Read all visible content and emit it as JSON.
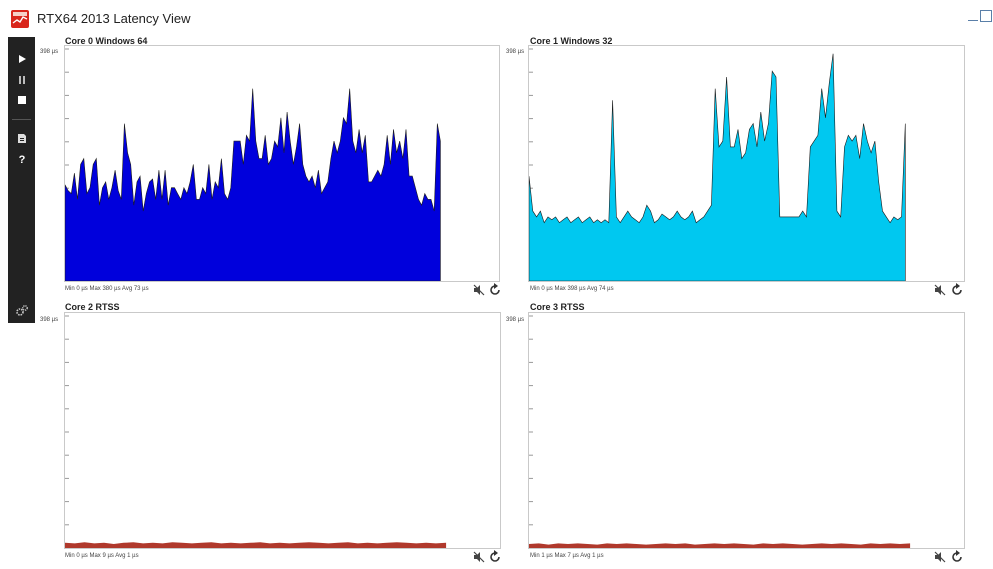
{
  "window": {
    "title": "RTX64 2013 Latency View"
  },
  "toolbar": {
    "items": [
      {
        "name": "play-icon"
      },
      {
        "name": "pause-icon"
      },
      {
        "name": "stop-icon"
      },
      {
        "name": "save-report-icon"
      },
      {
        "name": "help-icon"
      },
      {
        "name": "settings-gears-icon"
      }
    ]
  },
  "colors": {
    "core0": "#0000dc",
    "core1": "#00c8f0",
    "rtss": "#b0392c"
  },
  "panels": [
    {
      "title": "Core 0 Windows 64",
      "ymax_label": "398 µs",
      "stats": "Min 0 µs Max 380 µs Avg 73 µs",
      "chart_data": {
        "type": "area",
        "ylim": [
          0,
          398
        ],
        "values": [
          165,
          155,
          150,
          185,
          140,
          200,
          210,
          150,
          160,
          200,
          210,
          130,
          160,
          170,
          140,
          160,
          190,
          155,
          140,
          270,
          220,
          200,
          130,
          170,
          180,
          120,
          150,
          170,
          175,
          140,
          190,
          140,
          190,
          130,
          160,
          160,
          150,
          140,
          160,
          150,
          170,
          200,
          140,
          140,
          160,
          150,
          200,
          140,
          170,
          160,
          210,
          150,
          140,
          160,
          240,
          240,
          240,
          200,
          250,
          240,
          330,
          240,
          210,
          210,
          250,
          200,
          210,
          240,
          230,
          280,
          220,
          290,
          240,
          200,
          230,
          270,
          200,
          180,
          170,
          180,
          160,
          190,
          150,
          160,
          170,
          210,
          240,
          220,
          240,
          280,
          270,
          330,
          240,
          220,
          260,
          220,
          250,
          170,
          170,
          180,
          190,
          180,
          200,
          250,
          200,
          260,
          220,
          240,
          210,
          260,
          180,
          180,
          160,
          140,
          130,
          150,
          140,
          140,
          120,
          270,
          240
        ]
      }
    },
    {
      "title": "Core 1 Windows 32",
      "ymax_label": "398 µs",
      "stats": "Min 0 µs Max 398 µs Avg 74 µs",
      "chart_data": {
        "type": "area",
        "ylim": [
          0,
          398
        ],
        "values": [
          180,
          120,
          110,
          120,
          100,
          110,
          105,
          110,
          100,
          105,
          110,
          100,
          105,
          110,
          100,
          105,
          110,
          100,
          105,
          100,
          105,
          100,
          310,
          110,
          100,
          110,
          120,
          110,
          105,
          100,
          110,
          130,
          120,
          100,
          105,
          115,
          110,
          105,
          110,
          120,
          110,
          105,
          110,
          120,
          100,
          105,
          110,
          120,
          130,
          330,
          230,
          240,
          350,
          230,
          230,
          260,
          210,
          220,
          260,
          270,
          230,
          290,
          240,
          270,
          360,
          350,
          110,
          110,
          110,
          110,
          110,
          110,
          120,
          110,
          230,
          240,
          250,
          330,
          280,
          340,
          390,
          120,
          110,
          230,
          250,
          240,
          250,
          210,
          270,
          240,
          220,
          240,
          170,
          120,
          110,
          100,
          110,
          105,
          110,
          270
        ]
      }
    },
    {
      "title": "Core 2 RTSS",
      "ymax_label": "398 µs",
      "stats": "Min 0 µs Max 9 µs Avg 1 µs",
      "chart_data": {
        "type": "area",
        "ylim": [
          0,
          398
        ],
        "values": [
          8,
          7,
          9,
          7,
          8,
          6,
          8,
          9,
          7,
          8,
          7,
          9,
          8,
          7,
          8,
          9,
          7,
          8,
          7,
          8,
          9,
          7,
          8,
          7,
          8,
          9,
          8,
          7,
          8,
          9,
          7,
          8,
          7,
          8,
          9,
          8,
          7,
          8,
          7,
          8
        ]
      }
    },
    {
      "title": "Core 3 RTSS",
      "ymax_label": "398 µs",
      "stats": "Min 1 µs Max 7 µs Avg 1 µs",
      "chart_data": {
        "type": "area",
        "ylim": [
          0,
          398
        ],
        "values": [
          6,
          7,
          5,
          7,
          6,
          7,
          6,
          5,
          7,
          6,
          7,
          6,
          5,
          6,
          7,
          6,
          7,
          5,
          6,
          7,
          6,
          7,
          6,
          5,
          7,
          6,
          7,
          6,
          5,
          6,
          7,
          6,
          7,
          6,
          5,
          7,
          6,
          7,
          6,
          7
        ]
      }
    }
  ]
}
